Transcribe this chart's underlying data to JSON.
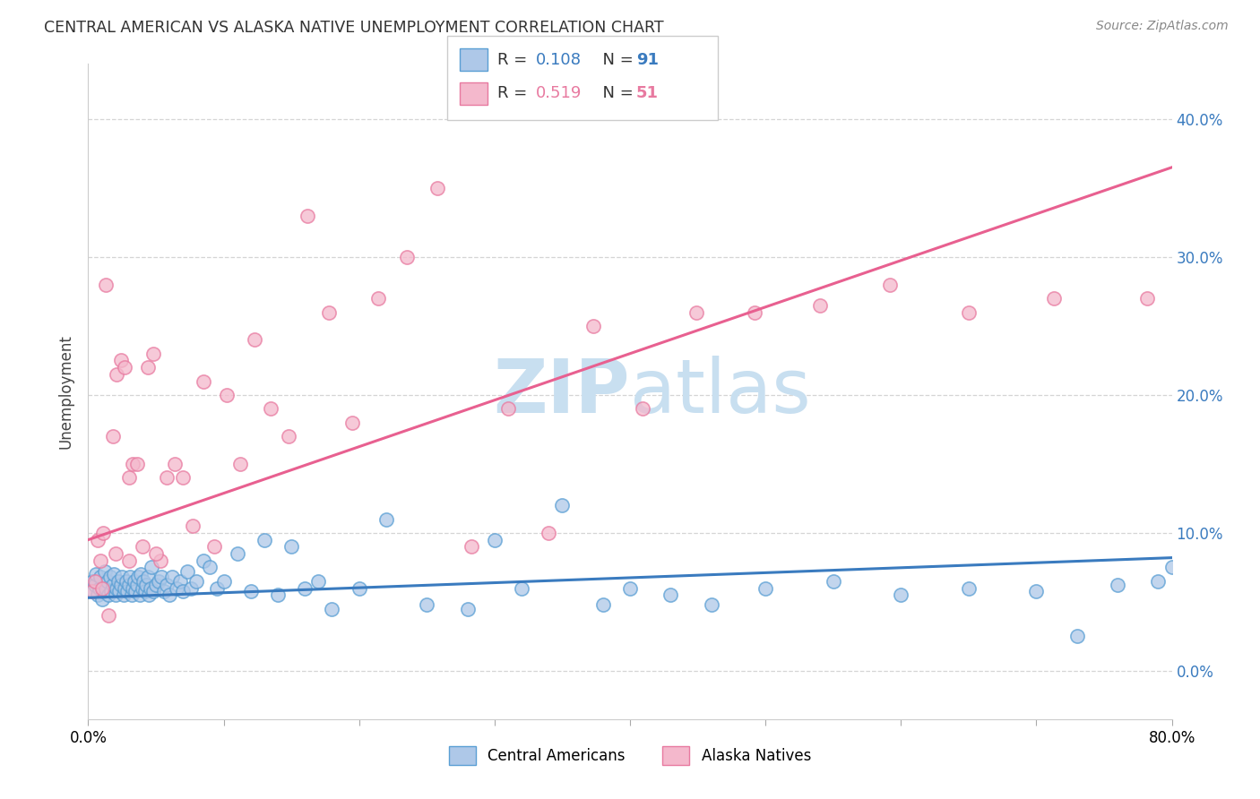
{
  "title": "CENTRAL AMERICAN VS ALASKA NATIVE UNEMPLOYMENT CORRELATION CHART",
  "source": "Source: ZipAtlas.com",
  "ylabel": "Unemployment",
  "yticks_labels": [
    "0.0%",
    "10.0%",
    "20.0%",
    "30.0%",
    "40.0%"
  ],
  "ytick_vals": [
    0.0,
    0.1,
    0.2,
    0.3,
    0.4
  ],
  "xlim": [
    0.0,
    0.8
  ],
  "ylim": [
    -0.035,
    0.44
  ],
  "legend_r_blue": "0.108",
  "legend_n_blue": "91",
  "legend_r_pink": "0.519",
  "legend_n_pink": "51",
  "blue_scatter_color": "#aec8e8",
  "blue_edge_color": "#5a9fd4",
  "pink_scatter_color": "#f4b8cc",
  "pink_edge_color": "#e87aa0",
  "blue_line_color": "#3a7bbf",
  "pink_line_color": "#e86090",
  "watermark_color": "#c8dff0",
  "blue_line_y0": 0.053,
  "blue_line_y1": 0.082,
  "pink_line_y0": 0.095,
  "pink_line_y1": 0.365,
  "blue_scatter_x": [
    0.003,
    0.004,
    0.005,
    0.006,
    0.007,
    0.008,
    0.009,
    0.01,
    0.011,
    0.012,
    0.013,
    0.014,
    0.015,
    0.016,
    0.017,
    0.018,
    0.019,
    0.02,
    0.021,
    0.022,
    0.023,
    0.024,
    0.025,
    0.026,
    0.027,
    0.028,
    0.029,
    0.03,
    0.031,
    0.032,
    0.033,
    0.034,
    0.035,
    0.036,
    0.037,
    0.038,
    0.039,
    0.04,
    0.041,
    0.042,
    0.043,
    0.044,
    0.045,
    0.046,
    0.047,
    0.048,
    0.05,
    0.052,
    0.054,
    0.056,
    0.058,
    0.06,
    0.062,
    0.065,
    0.068,
    0.07,
    0.073,
    0.076,
    0.08,
    0.085,
    0.09,
    0.095,
    0.1,
    0.11,
    0.12,
    0.13,
    0.14,
    0.15,
    0.16,
    0.17,
    0.18,
    0.2,
    0.22,
    0.25,
    0.28,
    0.3,
    0.32,
    0.35,
    0.38,
    0.4,
    0.43,
    0.46,
    0.5,
    0.55,
    0.6,
    0.65,
    0.7,
    0.73,
    0.76,
    0.79,
    0.8
  ],
  "blue_scatter_y": [
    0.065,
    0.058,
    0.062,
    0.07,
    0.055,
    0.06,
    0.068,
    0.052,
    0.058,
    0.072,
    0.06,
    0.065,
    0.055,
    0.068,
    0.058,
    0.062,
    0.07,
    0.055,
    0.06,
    0.065,
    0.058,
    0.062,
    0.068,
    0.055,
    0.06,
    0.065,
    0.058,
    0.062,
    0.068,
    0.055,
    0.06,
    0.065,
    0.058,
    0.062,
    0.068,
    0.055,
    0.07,
    0.06,
    0.065,
    0.058,
    0.062,
    0.068,
    0.055,
    0.06,
    0.075,
    0.058,
    0.062,
    0.065,
    0.068,
    0.058,
    0.062,
    0.055,
    0.068,
    0.06,
    0.065,
    0.058,
    0.072,
    0.06,
    0.065,
    0.08,
    0.075,
    0.06,
    0.065,
    0.085,
    0.058,
    0.095,
    0.055,
    0.09,
    0.06,
    0.065,
    0.045,
    0.06,
    0.11,
    0.048,
    0.045,
    0.095,
    0.06,
    0.12,
    0.048,
    0.06,
    0.055,
    0.048,
    0.06,
    0.065,
    0.055,
    0.06,
    0.058,
    0.025,
    0.062,
    0.065,
    0.075
  ],
  "pink_scatter_x": [
    0.003,
    0.005,
    0.007,
    0.009,
    0.011,
    0.013,
    0.015,
    0.018,
    0.021,
    0.024,
    0.027,
    0.03,
    0.033,
    0.036,
    0.04,
    0.044,
    0.048,
    0.053,
    0.058,
    0.064,
    0.07,
    0.077,
    0.085,
    0.093,
    0.102,
    0.112,
    0.123,
    0.135,
    0.148,
    0.162,
    0.178,
    0.195,
    0.214,
    0.235,
    0.258,
    0.283,
    0.31,
    0.34,
    0.373,
    0.409,
    0.449,
    0.492,
    0.54,
    0.592,
    0.65,
    0.713,
    0.782,
    0.01,
    0.02,
    0.03,
    0.05
  ],
  "pink_scatter_y": [
    0.058,
    0.065,
    0.095,
    0.08,
    0.1,
    0.28,
    0.04,
    0.17,
    0.215,
    0.225,
    0.22,
    0.14,
    0.15,
    0.15,
    0.09,
    0.22,
    0.23,
    0.08,
    0.14,
    0.15,
    0.14,
    0.105,
    0.21,
    0.09,
    0.2,
    0.15,
    0.24,
    0.19,
    0.17,
    0.33,
    0.26,
    0.18,
    0.27,
    0.3,
    0.35,
    0.09,
    0.19,
    0.1,
    0.25,
    0.19,
    0.26,
    0.26,
    0.265,
    0.28,
    0.26,
    0.27,
    0.27,
    0.06,
    0.085,
    0.08,
    0.085
  ]
}
